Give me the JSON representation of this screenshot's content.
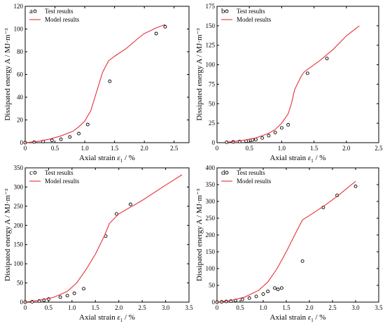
{
  "colors": {
    "model": "#e8303a",
    "marker": "#000000",
    "axis": "#000000"
  },
  "chart_data": [
    {
      "panel_label": "a",
      "type": "scatter+line",
      "xlabel_main": "Axial strain ",
      "xlabel_symbol": "ε",
      "xlabel_sub": "1",
      "xlabel_unit": " / %",
      "ylabel": "Dissipated energy A / MJ·m⁻³",
      "xlim": [
        0,
        2.75
      ],
      "ylim": [
        0,
        120
      ],
      "xticks": [
        0,
        0.5,
        1.0,
        1.5,
        2.0,
        2.5
      ],
      "xtick_labels": [
        "0",
        "0.5",
        "1.0",
        "1.5",
        "2.0",
        "2.5"
      ],
      "yticks": [
        0,
        20,
        40,
        60,
        80,
        100,
        120
      ],
      "ytick_labels": [
        "0",
        "20",
        "40",
        "60",
        "80",
        "100",
        "120"
      ],
      "legend": {
        "placement": "top-left",
        "entries": [
          "Test results",
          "Model results"
        ]
      },
      "series": [
        {
          "name": "Test results",
          "kind": "scatter",
          "x": [
            0.0,
            0.15,
            0.3,
            0.45,
            0.6,
            0.75,
            0.9,
            1.05,
            1.42,
            2.2,
            2.35
          ],
          "y": [
            0,
            0.5,
            1,
            2,
            3,
            5,
            8,
            16,
            54,
            96,
            102
          ]
        },
        {
          "name": "Model results",
          "kind": "line",
          "x": [
            0,
            0.2,
            0.4,
            0.6,
            0.8,
            0.9,
            1.0,
            1.1,
            1.2,
            1.3,
            1.4,
            1.5,
            1.7,
            1.9,
            2.0,
            2.2,
            2.35
          ],
          "y": [
            0,
            1,
            3,
            6,
            10,
            14,
            19,
            28,
            45,
            62,
            72,
            76,
            83,
            92,
            96,
            101,
            104
          ]
        }
      ]
    },
    {
      "panel_label": "b",
      "type": "scatter+line",
      "xlabel_main": "Axial strain ",
      "xlabel_symbol": "ε",
      "xlabel_sub": "1",
      "xlabel_unit": " / %",
      "ylabel": "Dissipated energy A / MJ·m⁻³",
      "xlim": [
        0,
        2.5
      ],
      "ylim": [
        0,
        175
      ],
      "xticks": [
        0,
        0.5,
        1.0,
        1.5,
        2.0,
        2.5
      ],
      "xtick_labels": [
        "0",
        "0.5",
        "1.0",
        "1.5",
        "2.0",
        "2.5"
      ],
      "yticks": [
        0,
        25,
        50,
        75,
        100,
        125,
        150,
        175
      ],
      "ytick_labels": [
        "0",
        "25",
        "50",
        "75",
        "100",
        "125",
        "150",
        "175"
      ],
      "legend": {
        "placement": "top-left",
        "entries": [
          "Test results",
          "Model results"
        ]
      },
      "series": [
        {
          "name": "Test results",
          "kind": "scatter",
          "x": [
            0.15,
            0.25,
            0.35,
            0.45,
            0.52,
            0.55,
            0.6,
            0.7,
            0.8,
            0.9,
            1.0,
            1.1,
            1.4,
            1.7
          ],
          "y": [
            0.5,
            1,
            1.5,
            2,
            3,
            3.5,
            4,
            6,
            9,
            13,
            19,
            23,
            89,
            108
          ]
        },
        {
          "name": "Model results",
          "kind": "line",
          "x": [
            0.15,
            0.4,
            0.6,
            0.8,
            0.9,
            1.0,
            1.1,
            1.15,
            1.2,
            1.3,
            1.35,
            1.4,
            1.6,
            1.8,
            2.0,
            2.2
          ],
          "y": [
            0.5,
            3,
            6,
            12,
            17,
            25,
            37,
            50,
            68,
            85,
            91,
            94,
            106,
            120,
            137,
            150
          ]
        }
      ]
    },
    {
      "panel_label": "c",
      "type": "scatter+line",
      "xlabel_main": "Axial strain ",
      "xlabel_symbol": "ε",
      "xlabel_sub": "1",
      "xlabel_unit": " / %",
      "ylabel": "Dissipated energy A / MJ·m⁻³",
      "xlim": [
        0,
        3.5
      ],
      "ylim": [
        0,
        350
      ],
      "xticks": [
        0,
        0.5,
        1.0,
        1.5,
        2.0,
        2.5,
        3.0,
        3.5
      ],
      "xtick_labels": [
        "0",
        "0.5",
        "1.0",
        "1.5",
        "2.0",
        "2.5",
        "3.0",
        "3.5"
      ],
      "yticks": [
        0,
        50,
        100,
        150,
        200,
        250,
        300,
        350
      ],
      "ytick_labels": [
        "0",
        "50",
        "100",
        "150",
        "200",
        "250",
        "300",
        "350"
      ],
      "legend": {
        "placement": "top-left",
        "entries": [
          "Test results",
          "Model results"
        ]
      },
      "series": [
        {
          "name": "Test results",
          "kind": "scatter",
          "x": [
            0.0,
            0.15,
            0.3,
            0.4,
            0.5,
            0.75,
            0.9,
            1.05,
            1.25,
            1.72,
            1.95,
            2.25
          ],
          "y": [
            0,
            1,
            3,
            5,
            8,
            13,
            17,
            23,
            35,
            172,
            230,
            255
          ]
        },
        {
          "name": "Model results",
          "kind": "line",
          "x": [
            0,
            0.3,
            0.6,
            0.9,
            1.1,
            1.3,
            1.5,
            1.7,
            1.8,
            2.0,
            2.5,
            3.0,
            3.35
          ],
          "y": [
            0,
            5,
            12,
            28,
            50,
            85,
            125,
            175,
            205,
            230,
            265,
            305,
            332
          ]
        }
      ]
    },
    {
      "panel_label": "d",
      "type": "scatter+line",
      "xlabel_main": "Axial strain ",
      "xlabel_symbol": "ε",
      "xlabel_sub": "1",
      "xlabel_unit": " / %",
      "ylabel": "Dissipated energy A / MJ·m⁻³",
      "xlim": [
        0,
        3.5
      ],
      "ylim": [
        0,
        400
      ],
      "xticks": [
        0,
        0.5,
        1.0,
        1.5,
        2.0,
        2.5,
        3.0,
        3.5
      ],
      "xtick_labels": [
        "0",
        "0.5",
        "1.0",
        "1.5",
        "2.0",
        "2.5",
        "3.0",
        "3.5"
      ],
      "yticks": [
        0,
        50,
        100,
        150,
        200,
        250,
        300,
        350,
        400
      ],
      "ytick_labels": [
        "0",
        "50",
        "100",
        "150",
        "200",
        "250",
        "300",
        "350",
        "400"
      ],
      "legend": {
        "placement": "top-left",
        "entries": [
          "Test results",
          "Model results"
        ]
      },
      "series": [
        {
          "name": "Test results",
          "kind": "scatter",
          "x": [
            0.0,
            0.1,
            0.2,
            0.3,
            0.4,
            0.55,
            0.7,
            0.85,
            1.0,
            1.1,
            1.25,
            1.32,
            1.4,
            1.85,
            2.3,
            2.6,
            3.0
          ],
          "y": [
            0,
            1,
            2,
            3,
            5,
            8,
            12,
            17,
            24,
            32,
            42,
            38,
            42,
            122,
            282,
            318,
            345
          ]
        },
        {
          "name": "Model results",
          "kind": "line",
          "x": [
            0,
            0.3,
            0.6,
            0.9,
            1.1,
            1.3,
            1.5,
            1.7,
            1.85,
            2.0,
            2.3,
            2.6,
            3.0
          ],
          "y": [
            0,
            5,
            15,
            35,
            60,
            100,
            150,
            205,
            245,
            258,
            285,
            315,
            360
          ]
        }
      ]
    }
  ]
}
